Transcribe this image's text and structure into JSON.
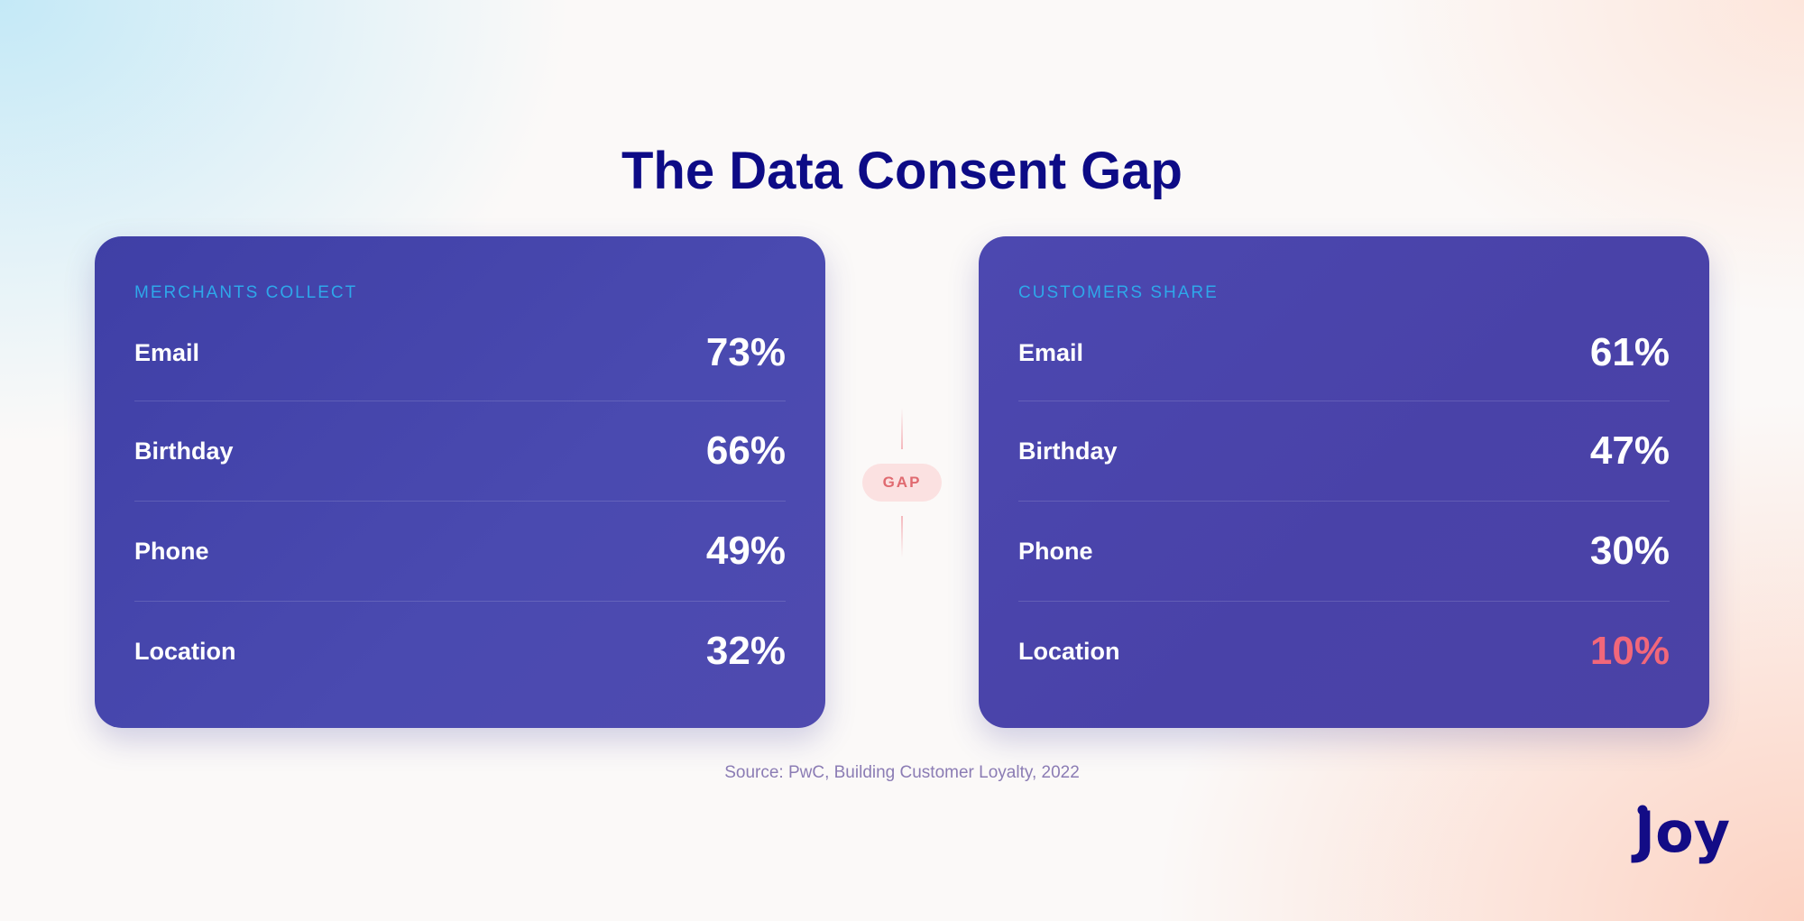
{
  "title": "The Data Consent Gap",
  "colors": {
    "title": "#0d0b86",
    "card": "#4444ab",
    "heading": "#2ea8ea",
    "alert": "#f2677a",
    "gap": "#e06a70",
    "logo": "#130c86"
  },
  "merchants": {
    "heading": "MERCHANTS COLLECT",
    "rows": [
      {
        "label": "Email",
        "value": "73%"
      },
      {
        "label": "Birthday",
        "value": "66%"
      },
      {
        "label": "Phone",
        "value": "49%"
      },
      {
        "label": "Location",
        "value": "32%"
      }
    ]
  },
  "customers": {
    "heading": "CUSTOMERS SHARE",
    "rows": [
      {
        "label": "Email",
        "value": "61%"
      },
      {
        "label": "Birthday",
        "value": "47%"
      },
      {
        "label": "Phone",
        "value": "30%"
      },
      {
        "label": "Location",
        "value": "10%"
      }
    ]
  },
  "gap_label": "GAP",
  "source": "Source: PwC, Building Customer Loyalty, 2022",
  "logo": {
    "text": "Joy",
    "icon": "joy-logo"
  }
}
